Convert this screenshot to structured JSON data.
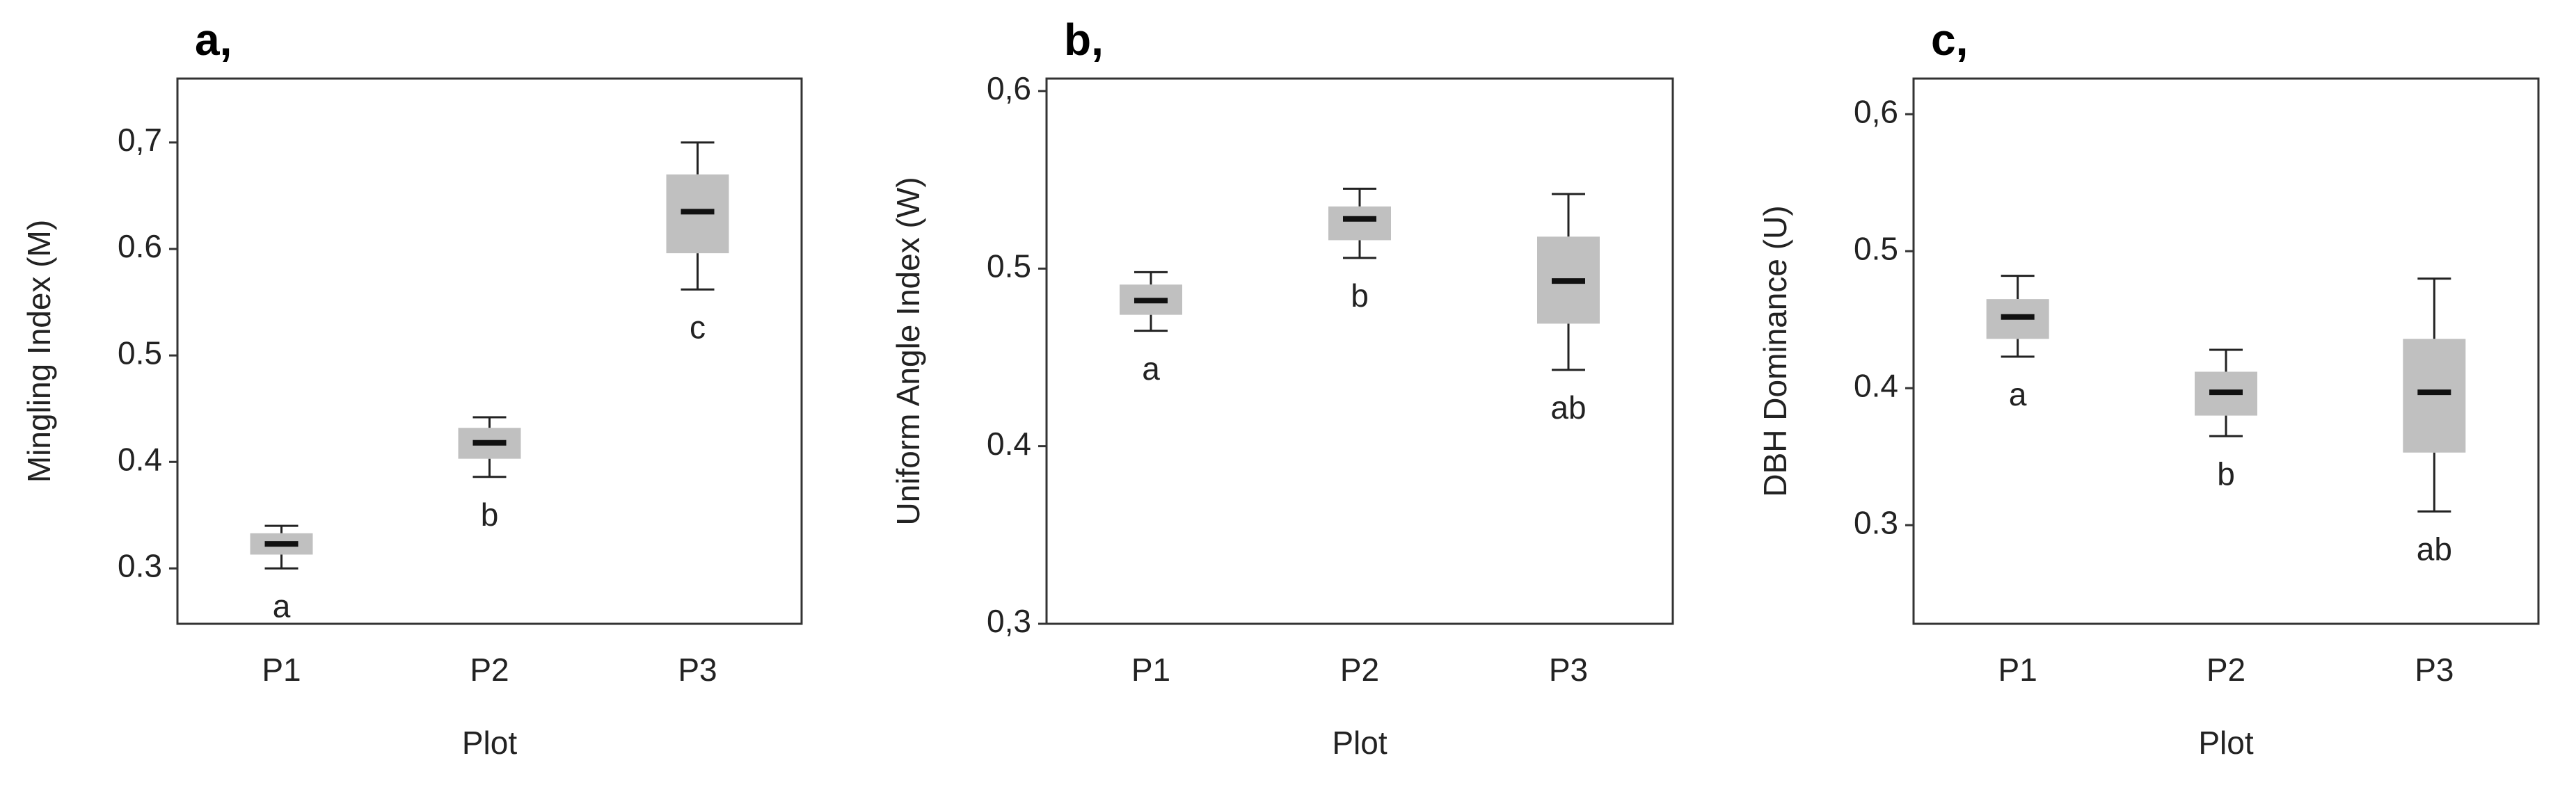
{
  "chart_data": [
    {
      "type": "box",
      "panel_label": "a,",
      "y_label": "Mingling Index (M)",
      "x_label": "Plot",
      "categories": [
        "P1",
        "P2",
        "P3"
      ],
      "whisker_low": [
        0.3,
        0.386,
        0.562
      ],
      "q1": [
        0.313,
        0.403,
        0.596
      ],
      "median": [
        0.323,
        0.418,
        0.635
      ],
      "q3": [
        0.333,
        0.432,
        0.67
      ],
      "whisker_high": [
        0.34,
        0.442,
        0.7
      ],
      "group_letters": [
        "a",
        "b",
        "c"
      ],
      "color": "#c0c0c0",
      "ylim": [
        0.248,
        0.76
      ],
      "yticks": [
        0.3,
        0.4,
        0.5,
        0.6,
        {
          "value": 0.7,
          "label": "0,7"
        }
      ]
    },
    {
      "type": "box",
      "panel_label": "b,",
      "y_label": "Uniform Angle Index (W)",
      "x_label": "Plot",
      "categories": [
        "P1",
        "P2",
        "P3"
      ],
      "whisker_low": [
        0.465,
        0.506,
        0.443
      ],
      "q1": [
        0.474,
        0.516,
        0.469
      ],
      "median": [
        0.482,
        0.528,
        0.493
      ],
      "q3": [
        0.491,
        0.535,
        0.518
      ],
      "whisker_high": [
        0.498,
        0.545,
        0.542
      ],
      "group_letters": [
        "a",
        "b",
        "ab"
      ],
      "color": "#c0c0c0",
      "ylim": [
        0.3,
        0.607
      ],
      "yticks": [
        {
          "value": 0.3,
          "label": "0,3"
        },
        0.4,
        0.5,
        {
          "value": 0.6,
          "label": "0,6"
        }
      ]
    },
    {
      "type": "box",
      "panel_label": "c,",
      "y_label": "DBH Dominance (U)",
      "x_label": "Plot",
      "categories": [
        "P1",
        "P2",
        "P3"
      ],
      "whisker_low": [
        0.423,
        0.365,
        0.31
      ],
      "q1": [
        0.436,
        0.38,
        0.353
      ],
      "median": [
        0.452,
        0.397,
        0.397
      ],
      "q3": [
        0.465,
        0.412,
        0.436
      ],
      "whisker_high": [
        0.482,
        0.428,
        0.48
      ],
      "group_letters": [
        "a",
        "b",
        "ab"
      ],
      "color": "#c0c0c0",
      "ylim": [
        0.228,
        0.626
      ],
      "yticks": [
        0.3,
        0.4,
        0.5,
        {
          "value": 0.6,
          "label": "0,6"
        }
      ]
    }
  ]
}
